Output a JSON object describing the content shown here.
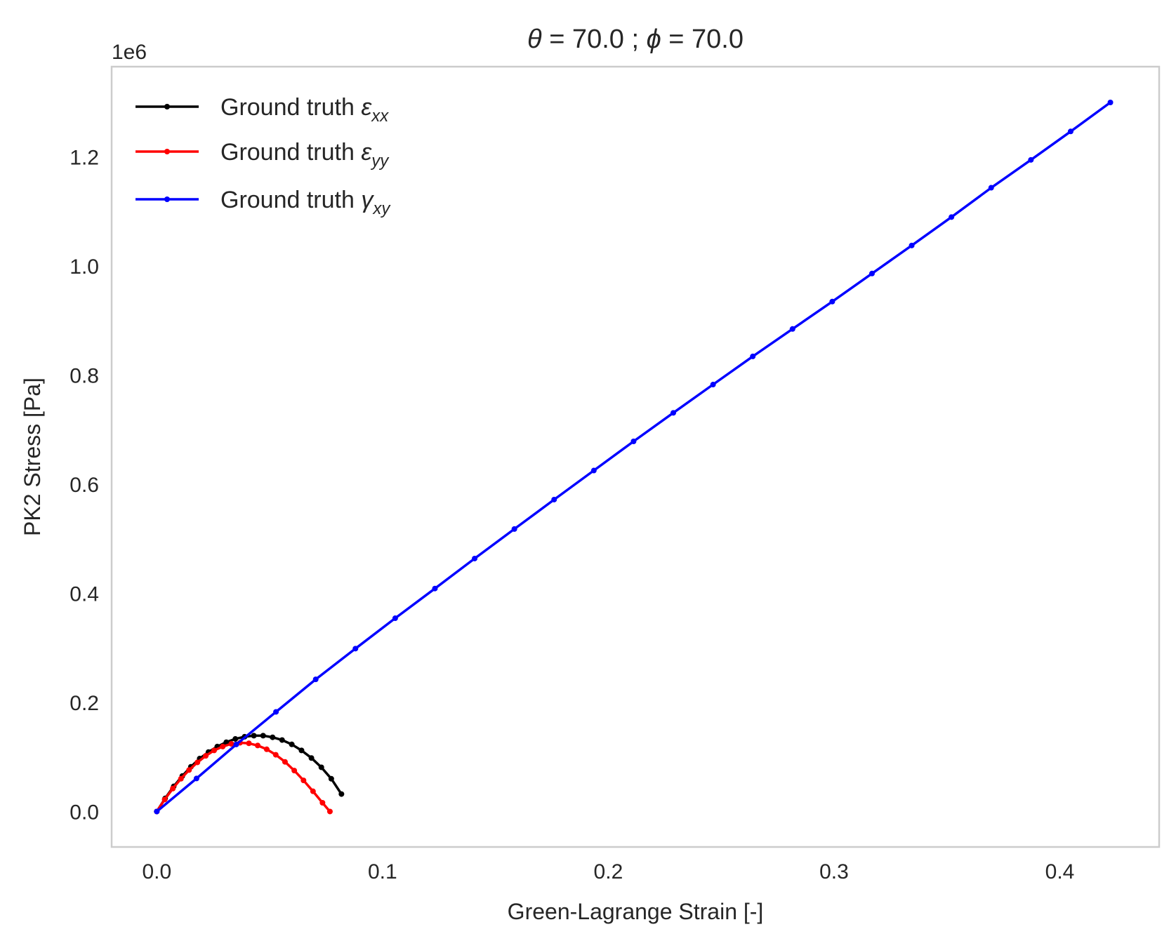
{
  "chart_data": {
    "type": "line",
    "title": {
      "theta_symbol": "θ",
      "theta_value": "= 70.0 ; ",
      "phi_symbol": "ϕ",
      "phi_value": "= 70.0"
    },
    "xlabel": "Green-Lagrange Strain [-]",
    "ylabel": "PK2 Stress [Pa]",
    "y_offset_label": "1e6",
    "xlim": [
      -0.02,
      0.444
    ],
    "ylim": [
      -0.065,
      1.365
    ],
    "x_ticks": [
      0.0,
      0.1,
      0.2,
      0.3,
      0.4
    ],
    "x_tick_labels": [
      "0.0",
      "0.1",
      "0.2",
      "0.3",
      "0.4"
    ],
    "y_ticks": [
      0.0,
      0.2,
      0.4,
      0.6,
      0.8,
      1.0,
      1.2
    ],
    "y_tick_labels": [
      "0.0",
      "0.2",
      "0.4",
      "0.6",
      "0.8",
      "1.0",
      "1.2"
    ],
    "grid": false,
    "legend_position": "top-left",
    "series": [
      {
        "name": "Ground truth",
        "symbol": "ε",
        "subscript": "xx",
        "color": "#000000",
        "x": [
          0.0,
          0.0037,
          0.0075,
          0.0113,
          0.0151,
          0.019,
          0.0229,
          0.0268,
          0.0308,
          0.0348,
          0.0389,
          0.043,
          0.0471,
          0.0513,
          0.0555,
          0.0598,
          0.0641,
          0.0685,
          0.0729,
          0.0773,
          0.0818
        ],
        "y": [
          0.0,
          0.024,
          0.046,
          0.065,
          0.082,
          0.097,
          0.109,
          0.119,
          0.127,
          0.133,
          0.137,
          0.139,
          0.139,
          0.136,
          0.131,
          0.123,
          0.112,
          0.098,
          0.081,
          0.06,
          0.032
        ]
      },
      {
        "name": "Ground truth",
        "symbol": "ε",
        "subscript": "yy",
        "color": "#ff0000",
        "x": [
          0.0,
          0.0035,
          0.0071,
          0.0107,
          0.0143,
          0.018,
          0.0217,
          0.0254,
          0.0292,
          0.033,
          0.0369,
          0.0408,
          0.0447,
          0.0487,
          0.0527,
          0.0568,
          0.0609,
          0.065,
          0.0692,
          0.0734,
          0.0767
        ],
        "y": [
          0.0,
          0.022,
          0.042,
          0.06,
          0.076,
          0.09,
          0.102,
          0.112,
          0.119,
          0.124,
          0.126,
          0.125,
          0.121,
          0.114,
          0.104,
          0.091,
          0.075,
          0.057,
          0.037,
          0.016,
          0.0
        ]
      },
      {
        "name": "Ground truth",
        "symbol": "γ",
        "subscript": "xy",
        "color": "#0000ff",
        "x": [
          0.0,
          0.0176,
          0.0352,
          0.0528,
          0.0704,
          0.088,
          0.1056,
          0.1232,
          0.1408,
          0.1584,
          0.176,
          0.1936,
          0.2112,
          0.2288,
          0.2464,
          0.264,
          0.2816,
          0.2992,
          0.3168,
          0.3344,
          0.352,
          0.3696,
          0.3872,
          0.4048,
          0.4224
        ],
        "y": [
          0.0,
          0.0605,
          0.1229,
          0.1826,
          0.2422,
          0.2985,
          0.3542,
          0.4086,
          0.4636,
          0.5177,
          0.5716,
          0.6249,
          0.6783,
          0.7306,
          0.7824,
          0.834,
          0.8843,
          0.9345,
          0.9859,
          1.0373,
          1.0894,
          1.1431,
          1.1942,
          1.2463,
          1.2994
        ]
      }
    ]
  }
}
